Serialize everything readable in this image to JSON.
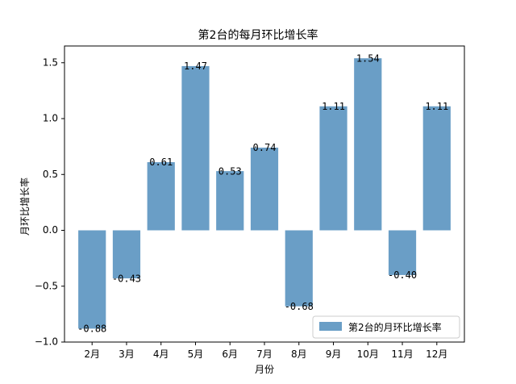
{
  "chart_data": {
    "type": "bar",
    "title": "第2台的每月环比增长率",
    "xlabel": "月份",
    "ylabel": "月环比增长率",
    "categories": [
      "2月",
      "3月",
      "4月",
      "5月",
      "6月",
      "7月",
      "8月",
      "9月",
      "10月",
      "11月",
      "12月"
    ],
    "series": [
      {
        "name": "第2台的月环比增长率",
        "values": [
          -0.88,
          -0.43,
          0.61,
          1.47,
          0.53,
          0.74,
          -0.68,
          1.11,
          1.54,
          -0.4,
          1.11
        ],
        "labels": [
          "-0.88",
          "-0.43",
          "0.61",
          "1.47",
          "0.53",
          "0.74",
          "-0.68",
          "1.11",
          "1.54",
          "-0.40",
          "1.11"
        ],
        "color": "#6a9ec6"
      }
    ],
    "ylim": [
      -1.0,
      1.65
    ],
    "yticks": [
      -1.0,
      -0.5,
      0.0,
      0.5,
      1.0,
      1.5
    ],
    "ytick_labels": [
      "−1.0",
      "−0.5",
      "0.0",
      "0.5",
      "1.0",
      "1.5"
    ],
    "legend_position": "lower-right",
    "grid": false
  }
}
